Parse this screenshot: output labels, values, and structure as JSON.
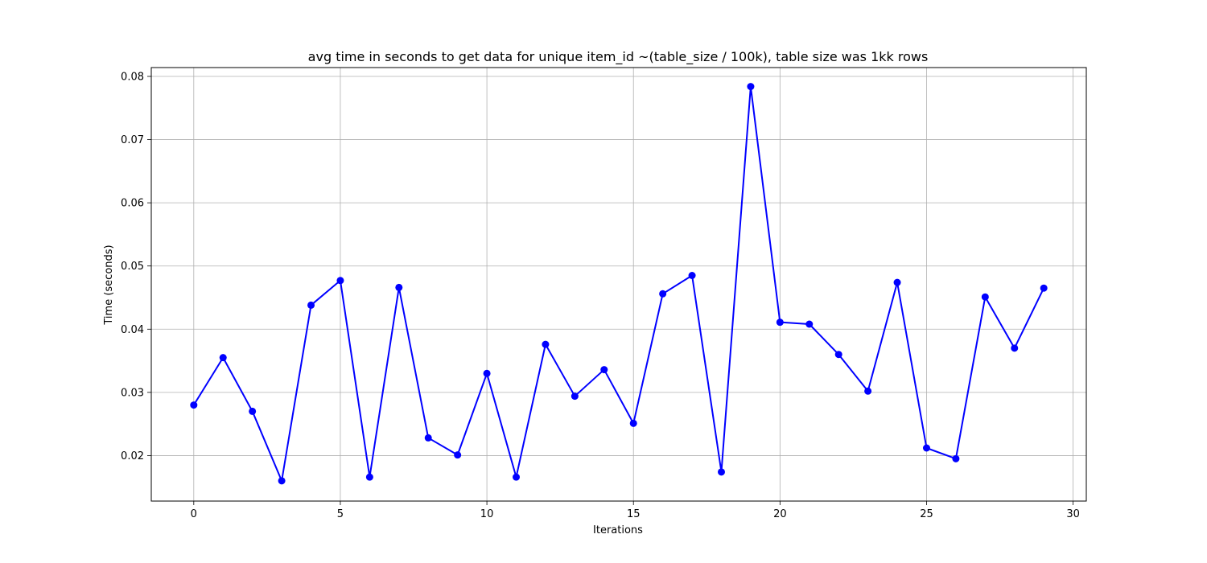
{
  "chart_data": {
    "type": "line",
    "title": "avg time in seconds to get data for unique item_id ~(table_size / 100k), table size was 1kk rows",
    "xlabel": "Iterations",
    "ylabel": "Time (seconds)",
    "xlim": [
      -1.45,
      30.45
    ],
    "ylim": [
      0.0128,
      0.0814
    ],
    "xticks": [
      0,
      5,
      10,
      15,
      20,
      25,
      30
    ],
    "xtick_labels": [
      "0",
      "5",
      "10",
      "15",
      "20",
      "25",
      "30"
    ],
    "yticks": [
      0.02,
      0.03,
      0.04,
      0.05,
      0.06,
      0.07,
      0.08
    ],
    "ytick_labels": [
      "0.02",
      "0.03",
      "0.04",
      "0.05",
      "0.06",
      "0.07",
      "0.08"
    ],
    "grid": true,
    "series": [
      {
        "color": "#0000ff",
        "marker": "circle",
        "x": [
          0,
          1,
          2,
          3,
          4,
          5,
          6,
          7,
          8,
          9,
          10,
          11,
          12,
          13,
          14,
          15,
          16,
          17,
          18,
          19,
          20,
          21,
          22,
          23,
          24,
          25,
          26,
          27,
          28,
          29
        ],
        "values": [
          0.028,
          0.0355,
          0.027,
          0.016,
          0.0438,
          0.0477,
          0.0166,
          0.0466,
          0.0228,
          0.0201,
          0.033,
          0.0166,
          0.0376,
          0.0294,
          0.0336,
          0.0251,
          0.0456,
          0.0485,
          0.0174,
          0.0784,
          0.0411,
          0.0408,
          0.036,
          0.0302,
          0.0474,
          0.0212,
          0.0195,
          0.0451,
          0.037,
          0.0465
        ]
      }
    ]
  }
}
